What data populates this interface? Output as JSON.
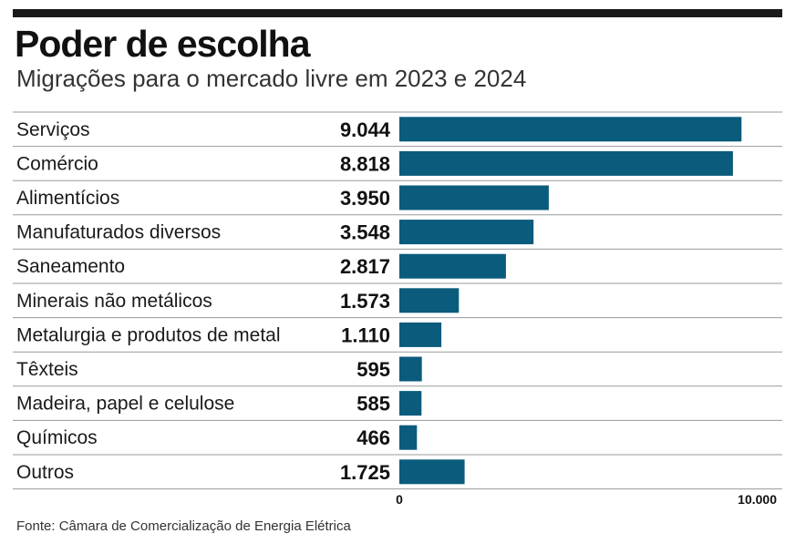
{
  "header": {
    "title": "Poder de escolha",
    "subtitle": "Migrações para o mercado livre em 2023 e 2024"
  },
  "chart_data": {
    "type": "bar",
    "orientation": "horizontal",
    "title": "Poder de escolha",
    "subtitle": "Migrações para o mercado livre em 2023 e 2024",
    "categories": [
      "Serviços",
      "Comércio",
      "Alimentícios",
      "Manufaturados diversos",
      "Saneamento",
      "Minerais não metálicos",
      "Metalurgia e produtos de metal",
      "Têxteis",
      "Madeira, papel e celulose",
      "Químicos",
      "Outros"
    ],
    "values": [
      9044,
      8818,
      3950,
      3548,
      2817,
      1573,
      1110,
      595,
      585,
      466,
      1725
    ],
    "value_labels": [
      "9.044",
      "8.818",
      "3.950",
      "3.548",
      "2.817",
      "1.573",
      "1.110",
      "595",
      "585",
      "466",
      "1.725"
    ],
    "xlim": [
      0,
      10000
    ],
    "x_ticks": [
      "0",
      "10.000"
    ],
    "bar_color": "#0b5b7d",
    "grid": false,
    "xlabel": "",
    "ylabel": ""
  },
  "footer": {
    "source": "Fonte: Câmara de Comercialização de Energia Elétrica"
  }
}
